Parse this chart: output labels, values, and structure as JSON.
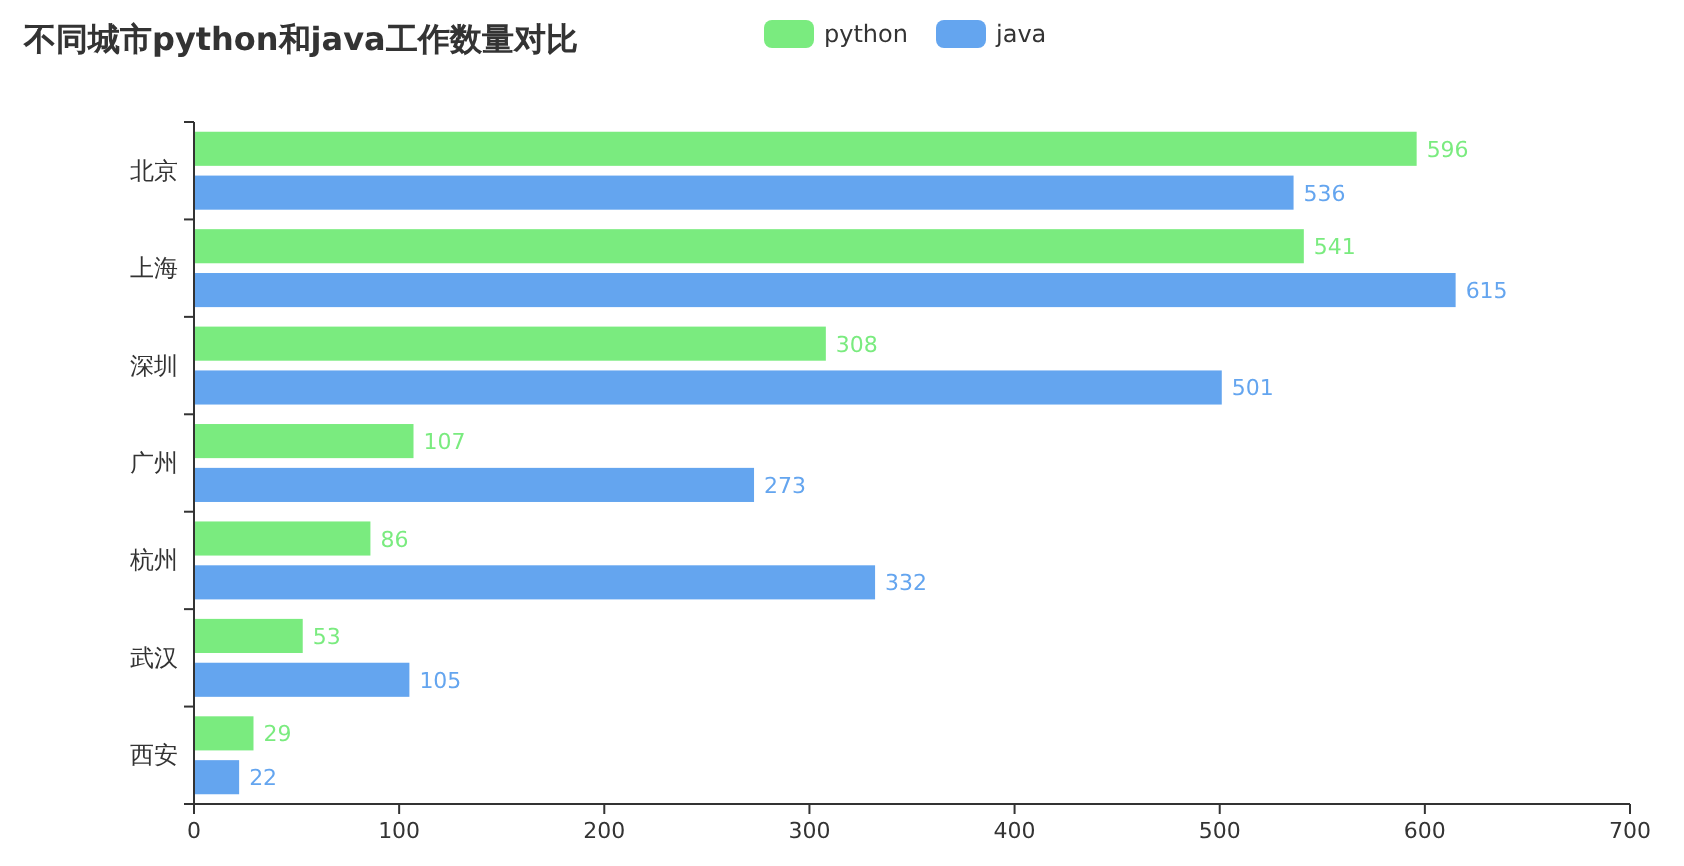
{
  "chart_data": {
    "type": "bar",
    "orientation": "horizontal",
    "title": "不同城市python和java工作数量对比",
    "categories": [
      "北京",
      "上海",
      "深圳",
      "广州",
      "杭州",
      "武汉",
      "西安"
    ],
    "series": [
      {
        "name": "python",
        "color": "#7aeb7f",
        "values": [
          596,
          541,
          308,
          107,
          86,
          53,
          29
        ]
      },
      {
        "name": "java",
        "color": "#64a5ef",
        "values": [
          536,
          615,
          501,
          273,
          332,
          105,
          22
        ]
      }
    ],
    "xlim": [
      0,
      700
    ],
    "xticks": [
      0,
      100,
      200,
      300,
      400,
      500,
      600,
      700
    ],
    "data_labels": true,
    "legend": "top",
    "grid": false
  }
}
